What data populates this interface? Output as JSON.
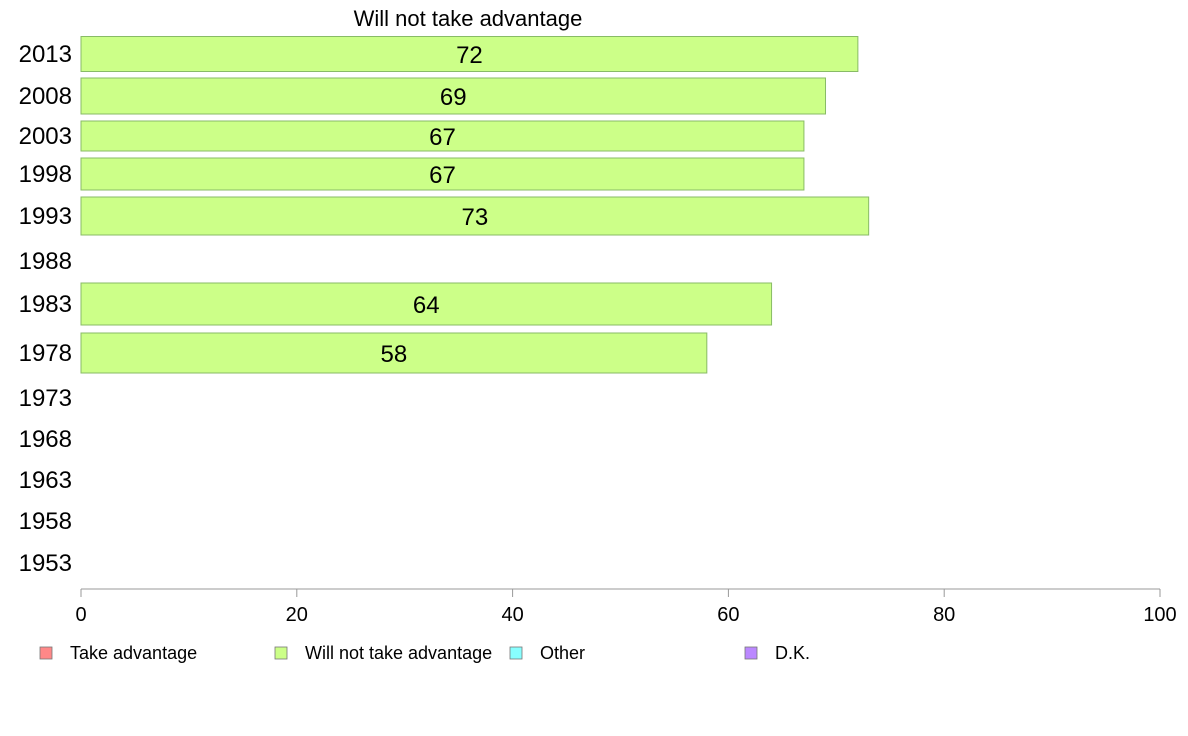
{
  "chart_data": {
    "type": "bar",
    "orientation": "horizontal",
    "title": "Will not take advantage",
    "categories": [
      "2013",
      "2008",
      "2003",
      "1998",
      "1993",
      "1988",
      "1983",
      "1978",
      "1973",
      "1968",
      "1963",
      "1958",
      "1953"
    ],
    "series": [
      {
        "name": "Will not take advantage",
        "color": "#ccff88",
        "values": [
          72,
          69,
          67,
          67,
          73,
          null,
          64,
          58,
          null,
          null,
          null,
          null,
          null
        ]
      }
    ],
    "xlim": [
      0,
      100
    ],
    "xticks": [
      "0",
      "20",
      "40",
      "60",
      "80",
      "100"
    ],
    "grid": false,
    "legend_position": "bottom",
    "legend": [
      {
        "label": "Take advantage",
        "color": "#ff8888"
      },
      {
        "label": "Will not take advantage",
        "color": "#ccff88"
      },
      {
        "label": "Other",
        "color": "#88ffff"
      },
      {
        "label": "D.K.",
        "color": "#bb88ff"
      }
    ]
  }
}
